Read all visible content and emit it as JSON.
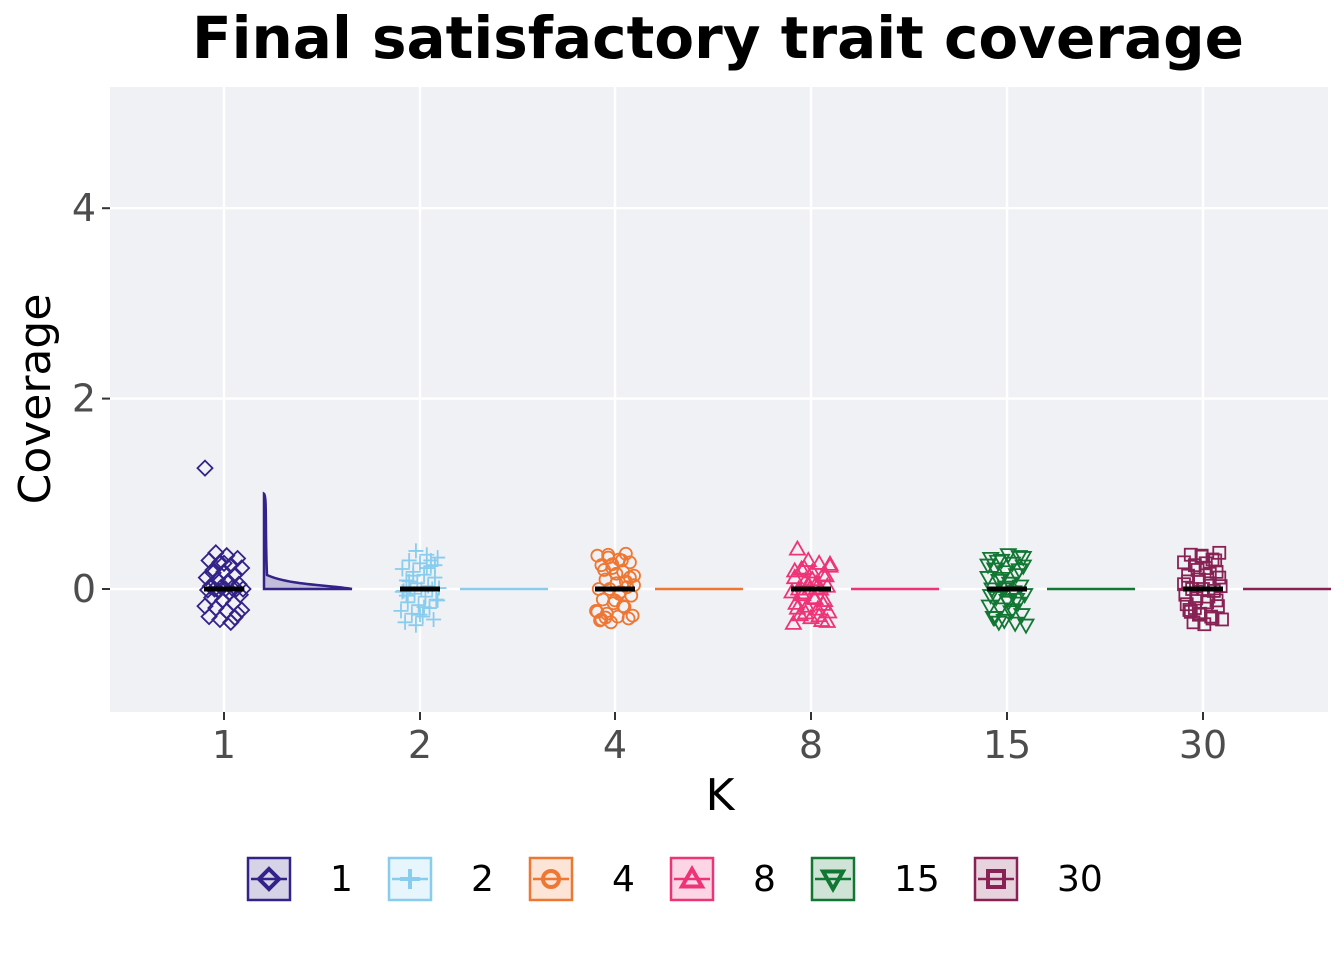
{
  "chart_data": {
    "type": "scatter",
    "title": "Final satisfactory trait coverage",
    "xlabel": "K",
    "ylabel": "Coverage",
    "categories": [
      "1",
      "2",
      "4",
      "8",
      "15",
      "30"
    ],
    "ylim": [
      -1.28,
      5.28
    ],
    "yticks": [
      0,
      2,
      4
    ],
    "grid": true,
    "legend_position": "bottom",
    "series": [
      {
        "name": "1",
        "color": "#332288",
        "marker": "diamond",
        "values": [
          1.27,
          0.38,
          0.35,
          0.32,
          0.3,
          0.28,
          0.25,
          0.22,
          0.2,
          0.18,
          0.15,
          0.12,
          0.1,
          0.08,
          0.05,
          0.03,
          0.02,
          0.01,
          0.0,
          0.0,
          0.0,
          0.0,
          -0.01,
          -0.02,
          -0.04,
          -0.06,
          -0.09,
          -0.12,
          -0.15,
          -0.18,
          -0.2,
          -0.23,
          -0.26,
          -0.29,
          -0.32,
          -0.35,
          -0.22,
          0.17,
          0.27,
          -0.3
        ],
        "median": 0,
        "density_peak": 1.0
      },
      {
        "name": "2",
        "color": "#88CCEE",
        "marker": "plus",
        "values": [
          0.4,
          0.36,
          0.33,
          0.3,
          0.27,
          0.24,
          0.21,
          0.18,
          0.15,
          0.12,
          0.09,
          0.06,
          0.03,
          0.01,
          0.0,
          0.0,
          0.0,
          -0.02,
          -0.05,
          -0.08,
          -0.11,
          -0.14,
          -0.17,
          -0.2,
          -0.23,
          -0.26,
          -0.29,
          -0.32,
          -0.35,
          -0.38,
          0.22,
          -0.12,
          0.08,
          -0.27,
          0.3,
          -0.03,
          0.14,
          -0.19,
          0.25,
          -0.07
        ],
        "median": 0
      },
      {
        "name": "4",
        "color": "#EE7733",
        "marker": "circle",
        "values": [
          0.37,
          0.35,
          0.33,
          0.31,
          0.28,
          0.25,
          0.22,
          0.18,
          0.14,
          0.1,
          0.06,
          0.02,
          0.0,
          0.0,
          -0.03,
          -0.07,
          -0.11,
          -0.15,
          -0.19,
          -0.23,
          -0.26,
          -0.29,
          -0.31,
          -0.33,
          -0.35,
          0.3,
          -0.28,
          0.2,
          -0.12,
          0.08,
          -0.24,
          0.36,
          -0.05,
          0.12,
          -0.32,
          0.26,
          -0.18,
          0.04,
          -0.3,
          0.16
        ],
        "median": 0
      },
      {
        "name": "8",
        "color": "#EE3377",
        "marker": "triangle-up",
        "values": [
          0.42,
          0.3,
          0.27,
          0.24,
          0.21,
          0.18,
          0.15,
          0.12,
          0.09,
          0.06,
          0.03,
          0.0,
          0.0,
          0.0,
          -0.03,
          -0.06,
          -0.09,
          -0.12,
          -0.15,
          -0.18,
          -0.21,
          -0.24,
          -0.27,
          -0.3,
          -0.33,
          -0.36,
          0.22,
          -0.1,
          0.14,
          -0.2,
          0.05,
          -0.28,
          0.26,
          -0.04,
          0.1,
          -0.16,
          0.19,
          -0.25,
          0.01,
          -0.34
        ],
        "median": 0
      },
      {
        "name": "15",
        "color": "#117733",
        "marker": "triangle-down",
        "values": [
          0.36,
          0.34,
          0.32,
          0.3,
          0.27,
          0.24,
          0.21,
          0.18,
          0.15,
          0.12,
          0.09,
          0.06,
          0.03,
          0.0,
          0.0,
          -0.03,
          -0.06,
          -0.09,
          -0.12,
          -0.15,
          -0.18,
          -0.21,
          -0.24,
          -0.27,
          -0.3,
          -0.33,
          -0.36,
          -0.38,
          0.29,
          -0.14,
          0.2,
          -0.07,
          0.11,
          -0.22,
          0.33,
          -0.3,
          0.02,
          -0.11,
          0.25,
          -0.35
        ],
        "median": 0
      },
      {
        "name": "30",
        "color": "#882255",
        "marker": "square",
        "values": [
          0.38,
          0.36,
          0.34,
          0.31,
          0.28,
          0.25,
          0.22,
          0.18,
          0.14,
          0.1,
          0.06,
          0.03,
          0.0,
          0.0,
          -0.02,
          -0.06,
          -0.1,
          -0.14,
          -0.18,
          -0.22,
          -0.26,
          -0.29,
          -0.32,
          -0.35,
          -0.37,
          0.3,
          -0.16,
          0.2,
          -0.08,
          0.12,
          -0.24,
          0.35,
          -0.31,
          0.05,
          -0.2,
          0.27,
          -0.12,
          0.08,
          -0.27,
          0.16
        ],
        "median": 0
      }
    ]
  }
}
